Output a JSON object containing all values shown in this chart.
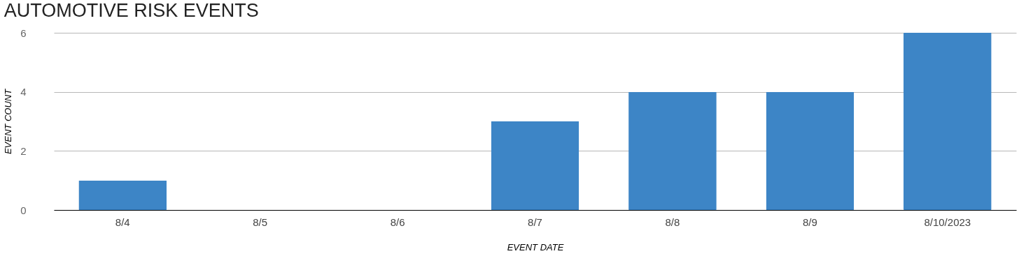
{
  "chart_data": {
    "type": "bar",
    "title": "AUTOMOTIVE RISK EVENTS",
    "xlabel": "EVENT DATE",
    "ylabel": "EVENT COUNT",
    "categories": [
      "8/4",
      "8/5",
      "8/6",
      "8/7",
      "8/8",
      "8/9",
      "8/10/2023"
    ],
    "values": [
      1,
      0,
      0,
      3,
      4,
      4,
      6
    ],
    "color": "#3d85c6",
    "ylim": [
      0,
      6
    ],
    "yticks": [
      0,
      2,
      4,
      6
    ],
    "grid": "y"
  }
}
